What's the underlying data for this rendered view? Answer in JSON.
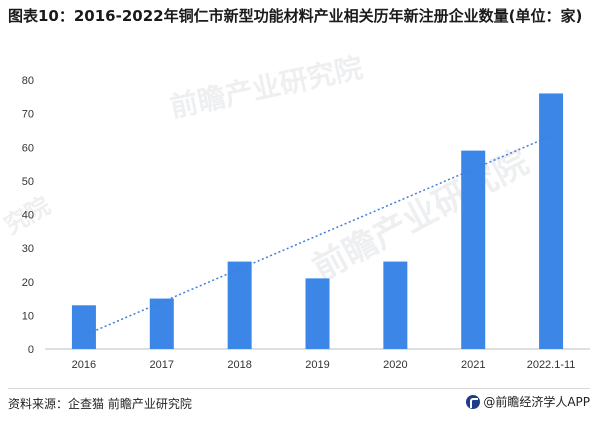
{
  "title": "图表10：2016-2022年铜仁市新型功能材料产业相关历年新注册企业数量(单位：家)",
  "footer": {
    "source": "资料来源：企查猫 前瞻产业研究院",
    "brand": "@前瞻经济学人APP"
  },
  "watermarks": [
    "前瞻产业研究院",
    "前瞻产业研究院",
    "究院"
  ],
  "colors": {
    "bar": "#3b86e6",
    "trendline": "#3f7fd9",
    "axis": "#bfbfbf"
  },
  "chart_data": {
    "type": "bar",
    "title": "图表10：2016-2022年铜仁市新型功能材料产业相关历年新注册企业数量(单位：家)",
    "categories": [
      "2016",
      "2017",
      "2018",
      "2019",
      "2020",
      "2021",
      "2022.1-11"
    ],
    "values": [
      13,
      15,
      26,
      21,
      26,
      59,
      76
    ],
    "ylim": [
      0,
      80
    ],
    "yticks": [
      0,
      10,
      20,
      30,
      40,
      50,
      60,
      70,
      80
    ],
    "grid": false,
    "trendline": "linear, dotted"
  }
}
